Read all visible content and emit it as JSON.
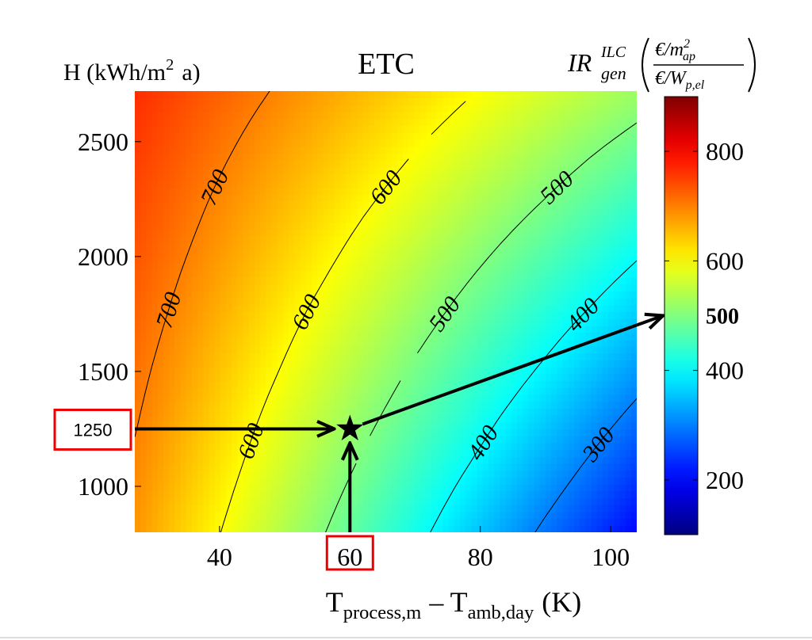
{
  "chart_data": {
    "type": "contour",
    "title": "ETC",
    "ylabel": [
      {
        "text": "H (kWh/m"
      },
      {
        "text": "2",
        "sup": true
      },
      {
        "text": "a)"
      }
    ],
    "xlabel": [
      {
        "text": "T"
      },
      {
        "text": "process,m",
        "sub": true
      },
      {
        "text": "– T"
      },
      {
        "text": "amb,day",
        "sub": true
      },
      {
        "text": "(K)"
      }
    ],
    "colorbar_label": {
      "symbol": "IR",
      "sup": "ILC",
      "sub": "gen",
      "numerator": "€/m",
      "numerator_sup": "2",
      "numerator_sub": "ap",
      "denominator": "€/W",
      "denominator_sub": "p,el"
    },
    "colormap": "jet",
    "x": [
      27,
      34,
      41,
      48,
      55,
      62,
      69,
      76,
      83,
      90,
      97,
      104
    ],
    "y": [
      800,
      1040,
      1280,
      1520,
      1760,
      2000,
      2240,
      2480,
      2720
    ],
    "z": [
      [
        682,
        638,
        595,
        551,
        508,
        464,
        421,
        377,
        334,
        290,
        247,
        203
      ],
      [
        692,
        652,
        611,
        570,
        529,
        488,
        447,
        406,
        366,
        325,
        284,
        243
      ],
      [
        703,
        665,
        627,
        588,
        550,
        512,
        474,
        436,
        397,
        359,
        321,
        283
      ],
      [
        713,
        678,
        642,
        607,
        571,
        536,
        500,
        465,
        429,
        394,
        358,
        323
      ],
      [
        724,
        691,
        658,
        625,
        592,
        560,
        527,
        494,
        461,
        428,
        396,
        363
      ],
      [
        734,
        704,
        674,
        644,
        614,
        583,
        553,
        523,
        493,
        463,
        433,
        403
      ],
      [
        744,
        717,
        689,
        662,
        635,
        607,
        580,
        552,
        525,
        498,
        470,
        443
      ],
      [
        755,
        730,
        705,
        680,
        656,
        631,
        606,
        582,
        557,
        532,
        507,
        483
      ],
      [
        765,
        743,
        721,
        699,
        677,
        655,
        633,
        611,
        589,
        567,
        545,
        523
      ]
    ],
    "levels": [
      300,
      400,
      500,
      600,
      700
    ],
    "xlim": [
      27,
      104
    ],
    "xticks": [
      40,
      60,
      80,
      100
    ],
    "ylim": [
      800,
      2720
    ],
    "yticks": [
      1000,
      1500,
      2000,
      2500
    ],
    "clim": [
      100,
      900
    ],
    "cticks": [
      200,
      400,
      600,
      800
    ],
    "highlight": {
      "x": 60,
      "y": 1250,
      "value": 500
    }
  }
}
